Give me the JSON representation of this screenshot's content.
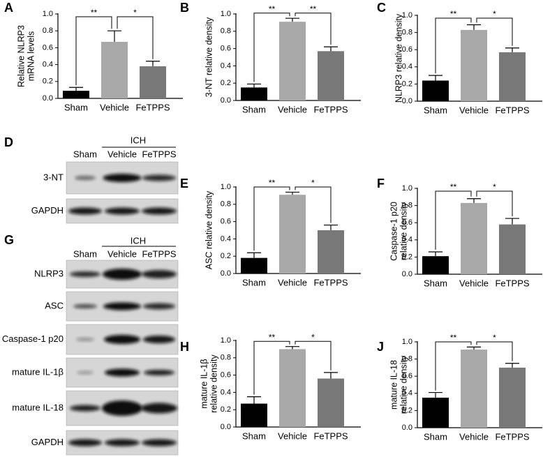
{
  "chart_data": [
    {
      "type": "bar",
      "panel": "A",
      "ylabel": [
        "Relative NLRP3",
        "mRNA levels"
      ],
      "categories": [
        "Sham",
        "Vehicle",
        "FeTPPS"
      ],
      "values": [
        0.09,
        0.67,
        0.38
      ],
      "errors": [
        0.04,
        0.13,
        0.06
      ],
      "colors": [
        "#000000",
        "#a8a8a8",
        "#787878"
      ],
      "ylim": [
        0,
        1
      ],
      "yticks": [
        {
          "value": 0,
          "label": "0.0"
        },
        0.2,
        0.4,
        0.6,
        0.8,
        {
          "value": 1,
          "label": "1.0"
        }
      ],
      "significance": [
        "**",
        "*"
      ]
    },
    {
      "type": "bar",
      "panel": "B",
      "ylabel": [
        "3-NT relative density"
      ],
      "categories": [
        "Sham",
        "Vehicle",
        "FeTPPS"
      ],
      "values": [
        0.15,
        0.91,
        0.57
      ],
      "errors": [
        0.04,
        0.04,
        0.05
      ],
      "colors": [
        "#000000",
        "#a8a8a8",
        "#787878"
      ],
      "ylim": [
        0,
        1
      ],
      "yticks": [
        {
          "value": 0,
          "label": "0.0"
        },
        0.2,
        0.4,
        0.6,
        0.8,
        {
          "value": 1,
          "label": "1.0"
        }
      ],
      "significance": [
        "**",
        "**"
      ]
    },
    {
      "type": "bar",
      "panel": "C",
      "ylabel": [
        "NLRP3 relative density"
      ],
      "categories": [
        "Sham",
        "Vehicle",
        "FeTPPS"
      ],
      "values": [
        0.24,
        0.83,
        0.57
      ],
      "errors": [
        0.06,
        0.06,
        0.05
      ],
      "colors": [
        "#000000",
        "#a8a8a8",
        "#787878"
      ],
      "ylim": [
        0,
        1
      ],
      "yticks": [
        {
          "value": 0,
          "label": "0.0"
        },
        0.2,
        0.4,
        0.6,
        0.8,
        {
          "value": 1,
          "label": "1.0"
        }
      ],
      "significance": [
        "**",
        "*"
      ]
    },
    {
      "type": "bar",
      "panel": "E",
      "ylabel": [
        "ASC relative density"
      ],
      "categories": [
        "Sham",
        "Vehicle",
        "FeTPPS"
      ],
      "values": [
        0.18,
        0.91,
        0.5
      ],
      "errors": [
        0.06,
        0.03,
        0.06
      ],
      "colors": [
        "#000000",
        "#a8a8a8",
        "#787878"
      ],
      "ylim": [
        0,
        1
      ],
      "yticks": [
        {
          "value": 0,
          "label": "0.0"
        },
        0.2,
        0.4,
        0.6,
        0.8,
        {
          "value": 1,
          "label": "1.0"
        }
      ],
      "significance": [
        "**",
        "*"
      ]
    },
    {
      "type": "bar",
      "panel": "F",
      "ylabel": [
        "Caspase-1 p20",
        "relative density"
      ],
      "categories": [
        "Sham",
        "Vehicle",
        "FeTPPS"
      ],
      "values": [
        0.21,
        0.83,
        0.58
      ],
      "errors": [
        0.05,
        0.05,
        0.07
      ],
      "colors": [
        "#000000",
        "#a8a8a8",
        "#787878"
      ],
      "ylim": [
        0,
        1
      ],
      "yticks": [
        {
          "value": 0,
          "label": "0.0"
        },
        0.2,
        0.4,
        0.6,
        0.8,
        {
          "value": 1,
          "label": "1.0"
        }
      ],
      "significance": [
        "**",
        "*"
      ]
    },
    {
      "type": "bar",
      "panel": "H",
      "ylabel": [
        "mature IL-1β",
        "relative density"
      ],
      "categories": [
        "Sham",
        "Vehicle",
        "FeTPPS"
      ],
      "values": [
        0.27,
        0.9,
        0.56
      ],
      "errors": [
        0.08,
        0.03,
        0.07
      ],
      "colors": [
        "#000000",
        "#a8a8a8",
        "#787878"
      ],
      "ylim": [
        0,
        1
      ],
      "yticks": [
        {
          "value": 0,
          "label": "0.0"
        },
        0.2,
        0.4,
        0.6,
        0.8,
        {
          "value": 1,
          "label": "1.0"
        }
      ],
      "significance": [
        "**",
        "*"
      ]
    },
    {
      "type": "bar",
      "panel": "J",
      "ylabel": [
        "mature IL-18",
        "relative density"
      ],
      "categories": [
        "Sham",
        "Vehicle",
        "FeTPPS"
      ],
      "values": [
        0.35,
        0.91,
        0.7
      ],
      "errors": [
        0.06,
        0.03,
        0.05
      ],
      "colors": [
        "#000000",
        "#a8a8a8",
        "#787878"
      ],
      "ylim": [
        0,
        1
      ],
      "yticks": [
        {
          "value": 0,
          "label": "0.0"
        },
        0.2,
        0.4,
        0.6,
        0.8,
        {
          "value": 1,
          "label": "1.0"
        }
      ],
      "significance": [
        "**",
        "*"
      ]
    }
  ],
  "blots": [
    {
      "panel": "D",
      "group": "ICH",
      "lanes": [
        "Sham",
        "Vehicle",
        "FeTPPS"
      ],
      "rows": [
        "3-NT",
        "GAPDH"
      ]
    },
    {
      "panel": "G",
      "group": "ICH",
      "lanes": [
        "Sham",
        "Vehicle",
        "FeTPPS"
      ],
      "rows": [
        "NLRP3",
        "ASC",
        "Caspase-1 p20",
        "mature IL-1β",
        "mature IL-18",
        "GAPDH"
      ]
    }
  ]
}
